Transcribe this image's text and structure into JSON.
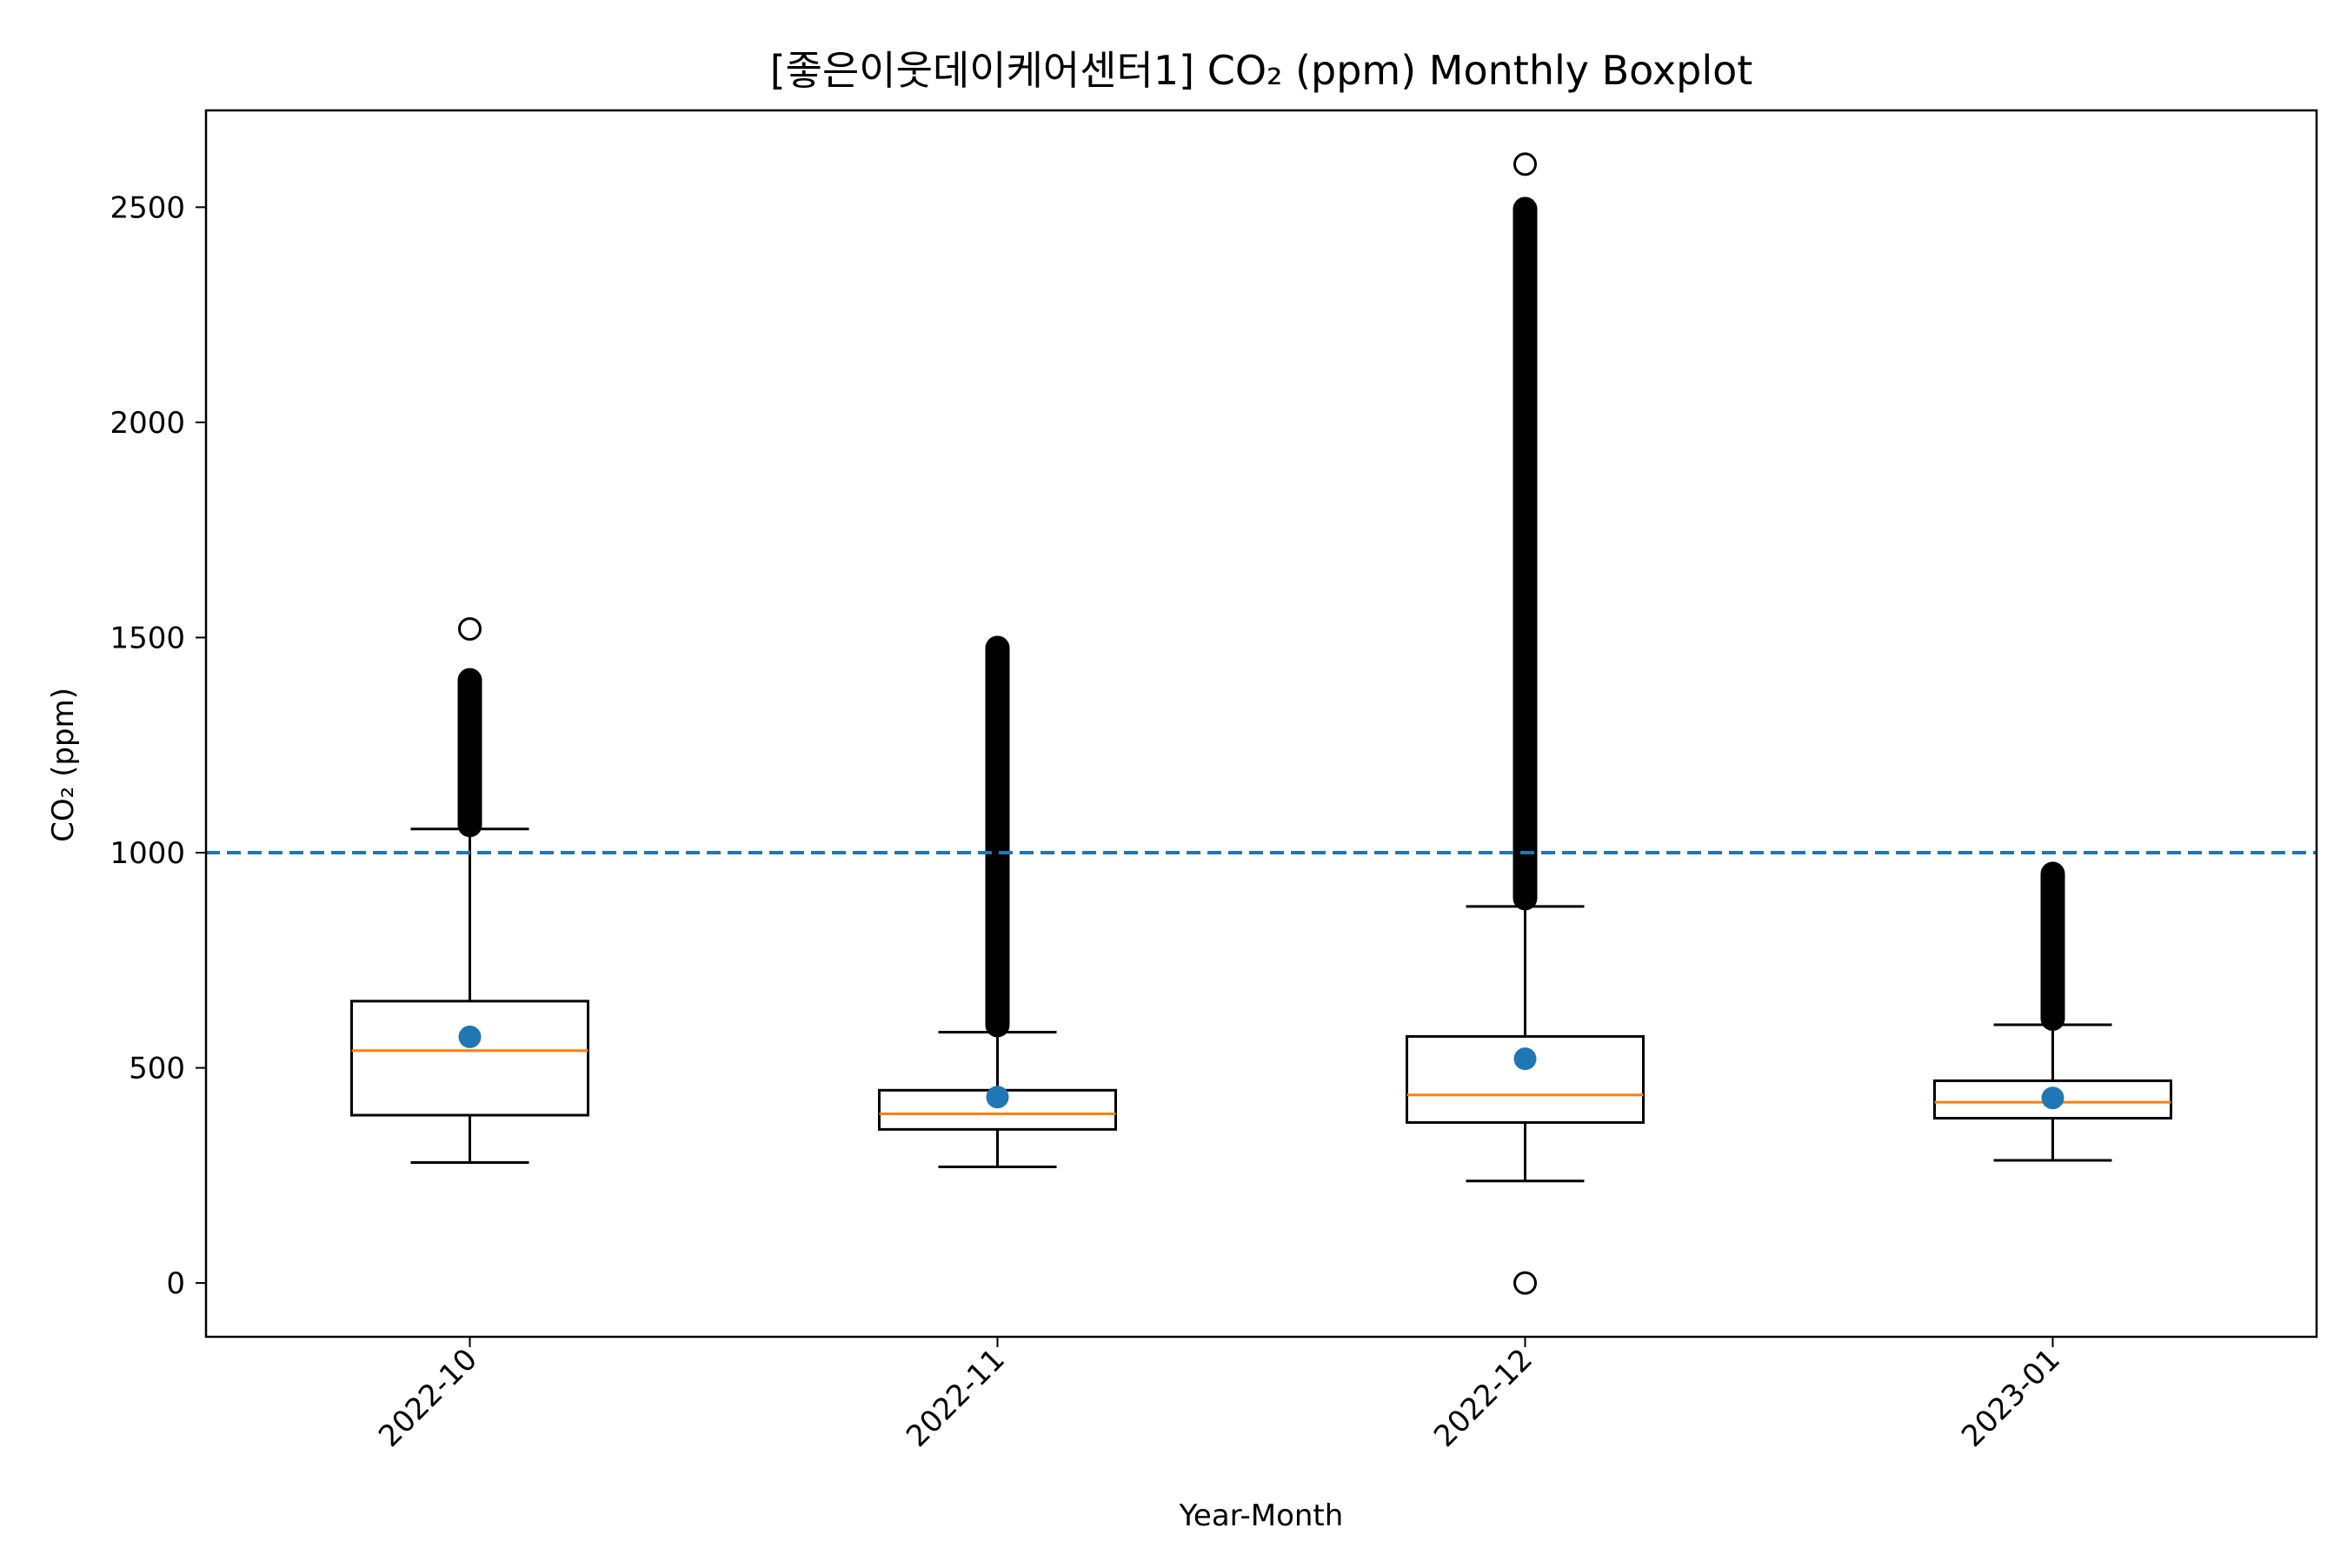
{
  "chart_data": {
    "type": "boxplot",
    "title": "[좋은이웃데이케어센터1] CO₂ (ppm) Monthly Boxplot",
    "xlabel": "Year-Month",
    "ylabel": "CO₂ (ppm)",
    "ylim": [
      -125,
      2725
    ],
    "yticks": [
      0,
      500,
      1000,
      1500,
      2000,
      2500
    ],
    "categories": [
      "2022-10",
      "2022-11",
      "2022-12",
      "2023-01"
    ],
    "threshold": 1000,
    "boxes": [
      {
        "label": "2022-10",
        "whisker_low": 280,
        "q1": 390,
        "median": 540,
        "q3": 655,
        "whisker_high": 1055,
        "mean": 572,
        "outlier_range": [
          1040,
          1425
        ],
        "outliers": [
          1520
        ]
      },
      {
        "label": "2022-11",
        "whisker_low": 270,
        "q1": 357,
        "median": 393,
        "q3": 448,
        "whisker_high": 583,
        "mean": 432,
        "outlier_range": [
          575,
          1500
        ],
        "outliers": []
      },
      {
        "label": "2022-12",
        "whisker_low": 237,
        "q1": 373,
        "median": 437,
        "q3": 573,
        "whisker_high": 875,
        "mean": 521,
        "outlier_range": [
          870,
          2520
        ],
        "outliers": [
          2600,
          0
        ]
      },
      {
        "label": "2023-01",
        "whisker_low": 285,
        "q1": 383,
        "median": 420,
        "q3": 470,
        "whisker_high": 600,
        "mean": 430,
        "outlier_range": [
          590,
          975
        ],
        "outliers": []
      }
    ],
    "colors": {
      "box": "#000000",
      "median": "#ff7f0e",
      "mean": "#1f77b4",
      "threshold": "#1f77b4"
    },
    "grid": false,
    "legend": "none"
  }
}
